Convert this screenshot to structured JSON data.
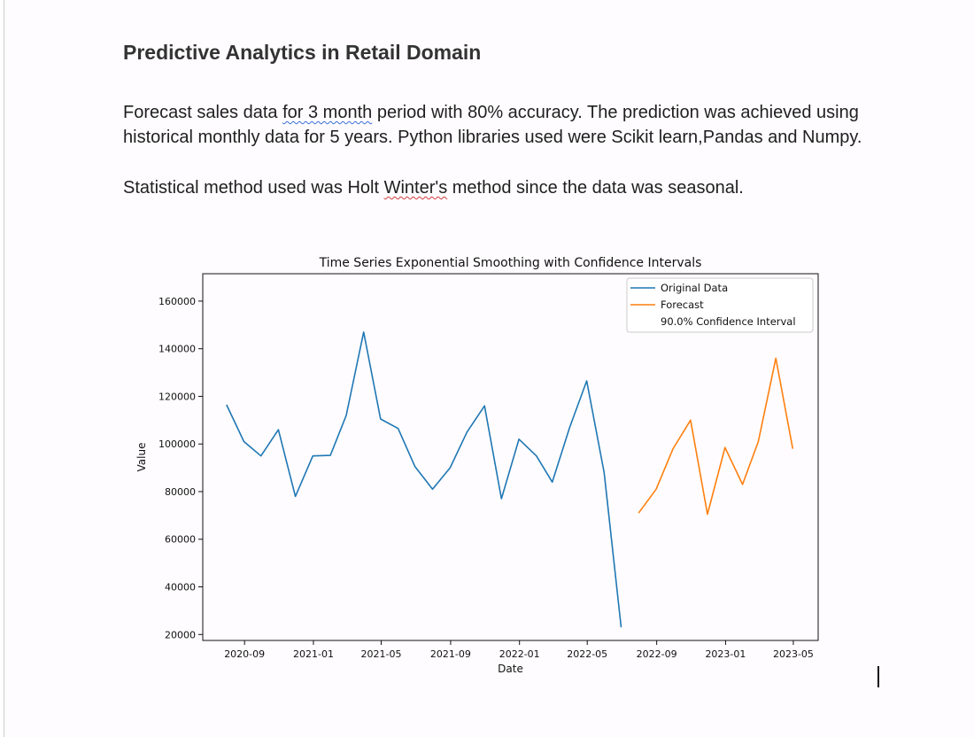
{
  "document": {
    "title": "Predictive Analytics in Retail Domain",
    "paragraph1": {
      "before": "Forecast sales data ",
      "flagged": "for 3 month",
      "after": " period with 80% accuracy. The prediction was achieved using historical monthly data for 5 years. Python libraries used were Scikit learn,Pandas and Numpy."
    },
    "paragraph2": {
      "before": "Statistical method used was Holt ",
      "flagged": "Winter's",
      "after": " method since the data was seasonal."
    }
  },
  "chart_data": {
    "type": "line",
    "title": "Time Series Exponential Smoothing with Confidence Intervals",
    "xlabel": "Date",
    "ylabel": "Value",
    "ylim": [
      17500,
      171500
    ],
    "yticks": [
      20000,
      40000,
      60000,
      80000,
      100000,
      120000,
      140000,
      160000
    ],
    "xlim": [
      "2020-06-19",
      "2023-06-14"
    ],
    "xticks": [
      "2020-09",
      "2021-01",
      "2021-05",
      "2021-09",
      "2022-01",
      "2022-05",
      "2022-09",
      "2023-01",
      "2023-05"
    ],
    "legend_position": "top-right",
    "grid": false,
    "series": [
      {
        "name": "Original Data",
        "color": "#1f77b4",
        "x": [
          "2020-07-31",
          "2020-08-31",
          "2020-09-30",
          "2020-10-31",
          "2020-11-30",
          "2020-12-31",
          "2021-01-31",
          "2021-02-28",
          "2021-03-31",
          "2021-04-30",
          "2021-05-31",
          "2021-06-30",
          "2021-07-31",
          "2021-08-31",
          "2021-09-30",
          "2021-10-31",
          "2021-11-30",
          "2021-12-31",
          "2022-01-31",
          "2022-02-28",
          "2022-03-31",
          "2022-04-30",
          "2022-05-31",
          "2022-06-30",
          "2022-07-31"
        ],
        "values": [
          116500,
          101000,
          95000,
          106000,
          78000,
          95000,
          95200,
          112000,
          147000,
          110500,
          106500,
          90500,
          81000,
          90000,
          105000,
          116000,
          77000,
          102000,
          95000,
          84000,
          107000,
          126500,
          88000,
          23000,
          null
        ]
      },
      {
        "name": "Forecast",
        "color": "#ff7f0e",
        "x": [
          "2022-07-31",
          "2022-08-31",
          "2022-09-30",
          "2022-10-31",
          "2022-11-30",
          "2022-12-31",
          "2023-01-31",
          "2023-02-28",
          "2023-03-31",
          "2023-04-30",
          "2023-05-31"
        ],
        "values": [
          71000,
          81000,
          98000,
          110000,
          70500,
          98500,
          83000,
          101000,
          136000,
          98000,
          null
        ]
      }
    ],
    "confidence_interval_label": "90.0% Confidence Interval"
  }
}
